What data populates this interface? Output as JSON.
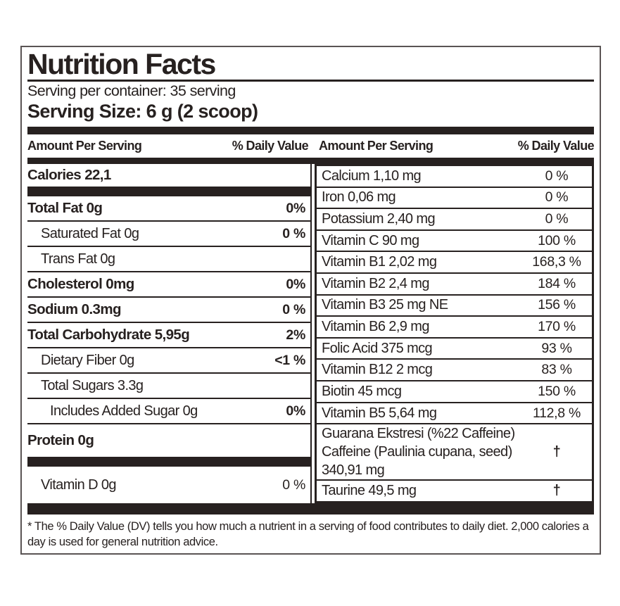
{
  "header": {
    "title": "Nutrition Facts",
    "servings_per_container": "Serving per container: 35 serving",
    "serving_size": "Serving Size: 6 g (2 scoop)"
  },
  "column_headers": {
    "left_amount": "Amount Per Serving",
    "left_daily_value": "% Daily Value",
    "right_amount": "Amount Per Serving",
    "right_daily_value": "% Daily Value"
  },
  "left_column": {
    "rows": [
      {
        "label": "Calories  22,1",
        "value": ""
      },
      {
        "label": "Total Fat  0g",
        "value": "0%"
      },
      {
        "label": "Saturated Fat  0g",
        "value": "0 %"
      },
      {
        "label": "Trans Fat 0g",
        "value": ""
      },
      {
        "label": "Cholesterol 0mg",
        "value": "0%"
      },
      {
        "label": "Sodium  0.3mg",
        "value": "0 %"
      },
      {
        "label": "Total Carbohydrate  5,95g",
        "value": "2%"
      },
      {
        "label": "Dietary Fiber 0g",
        "value": "<1 %"
      },
      {
        "label": "Total Sugars 3.3g",
        "value": ""
      },
      {
        "label": "Includes Added Sugar 0g",
        "value": "0%"
      },
      {
        "label": "Protein 0g",
        "value": ""
      },
      {
        "label": "Vitamin D 0g",
        "value": "0 %"
      }
    ]
  },
  "right_column": {
    "rows": [
      {
        "label": "Calcium 1,10 mg",
        "value": "0 %"
      },
      {
        "label": "Iron 0,06 mg",
        "value": "0 %"
      },
      {
        "label": "Potassium 2,40 mg",
        "value": "0 %"
      },
      {
        "label": "Vitamin C 90 mg",
        "value": "100 %"
      },
      {
        "label": "Vitamin B1 2,02 mg",
        "value": "168,3 %"
      },
      {
        "label": "Vitamin B2 2,4 mg",
        "value": "184 %"
      },
      {
        "label": "Vitamin B3 25 mg NE",
        "value": "156 %"
      },
      {
        "label": "Vitamin B6 2,9 mg",
        "value": "170 %"
      },
      {
        "label": "Folic Acid 375 mcg",
        "value": "93 %"
      },
      {
        "label": "Vitamin B12 2 mcg",
        "value": "83 %"
      },
      {
        "label": "Biotin 45 mcg",
        "value": "150 %"
      },
      {
        "label": "Vitamin B5 5,64 mg",
        "value": "112,8 %"
      },
      {
        "label_line1": "Guarana Ekstresi (%22 Caffeine)",
        "label_line2": "Caffeine (Paulinia cupana, seed) 340,91 mg",
        "value": "†"
      },
      {
        "label": "Taurine 49,5 mg",
        "value": "†"
      }
    ]
  },
  "footnote": "* The % Daily Value (DV) tells you how much a nutrient in a serving of food contributes to daily diet. 2,000 calories a day is used for general nutrition advice.",
  "colors": {
    "ink": "#272120",
    "panel_border": "#5a5454",
    "background": "#ffffff"
  }
}
